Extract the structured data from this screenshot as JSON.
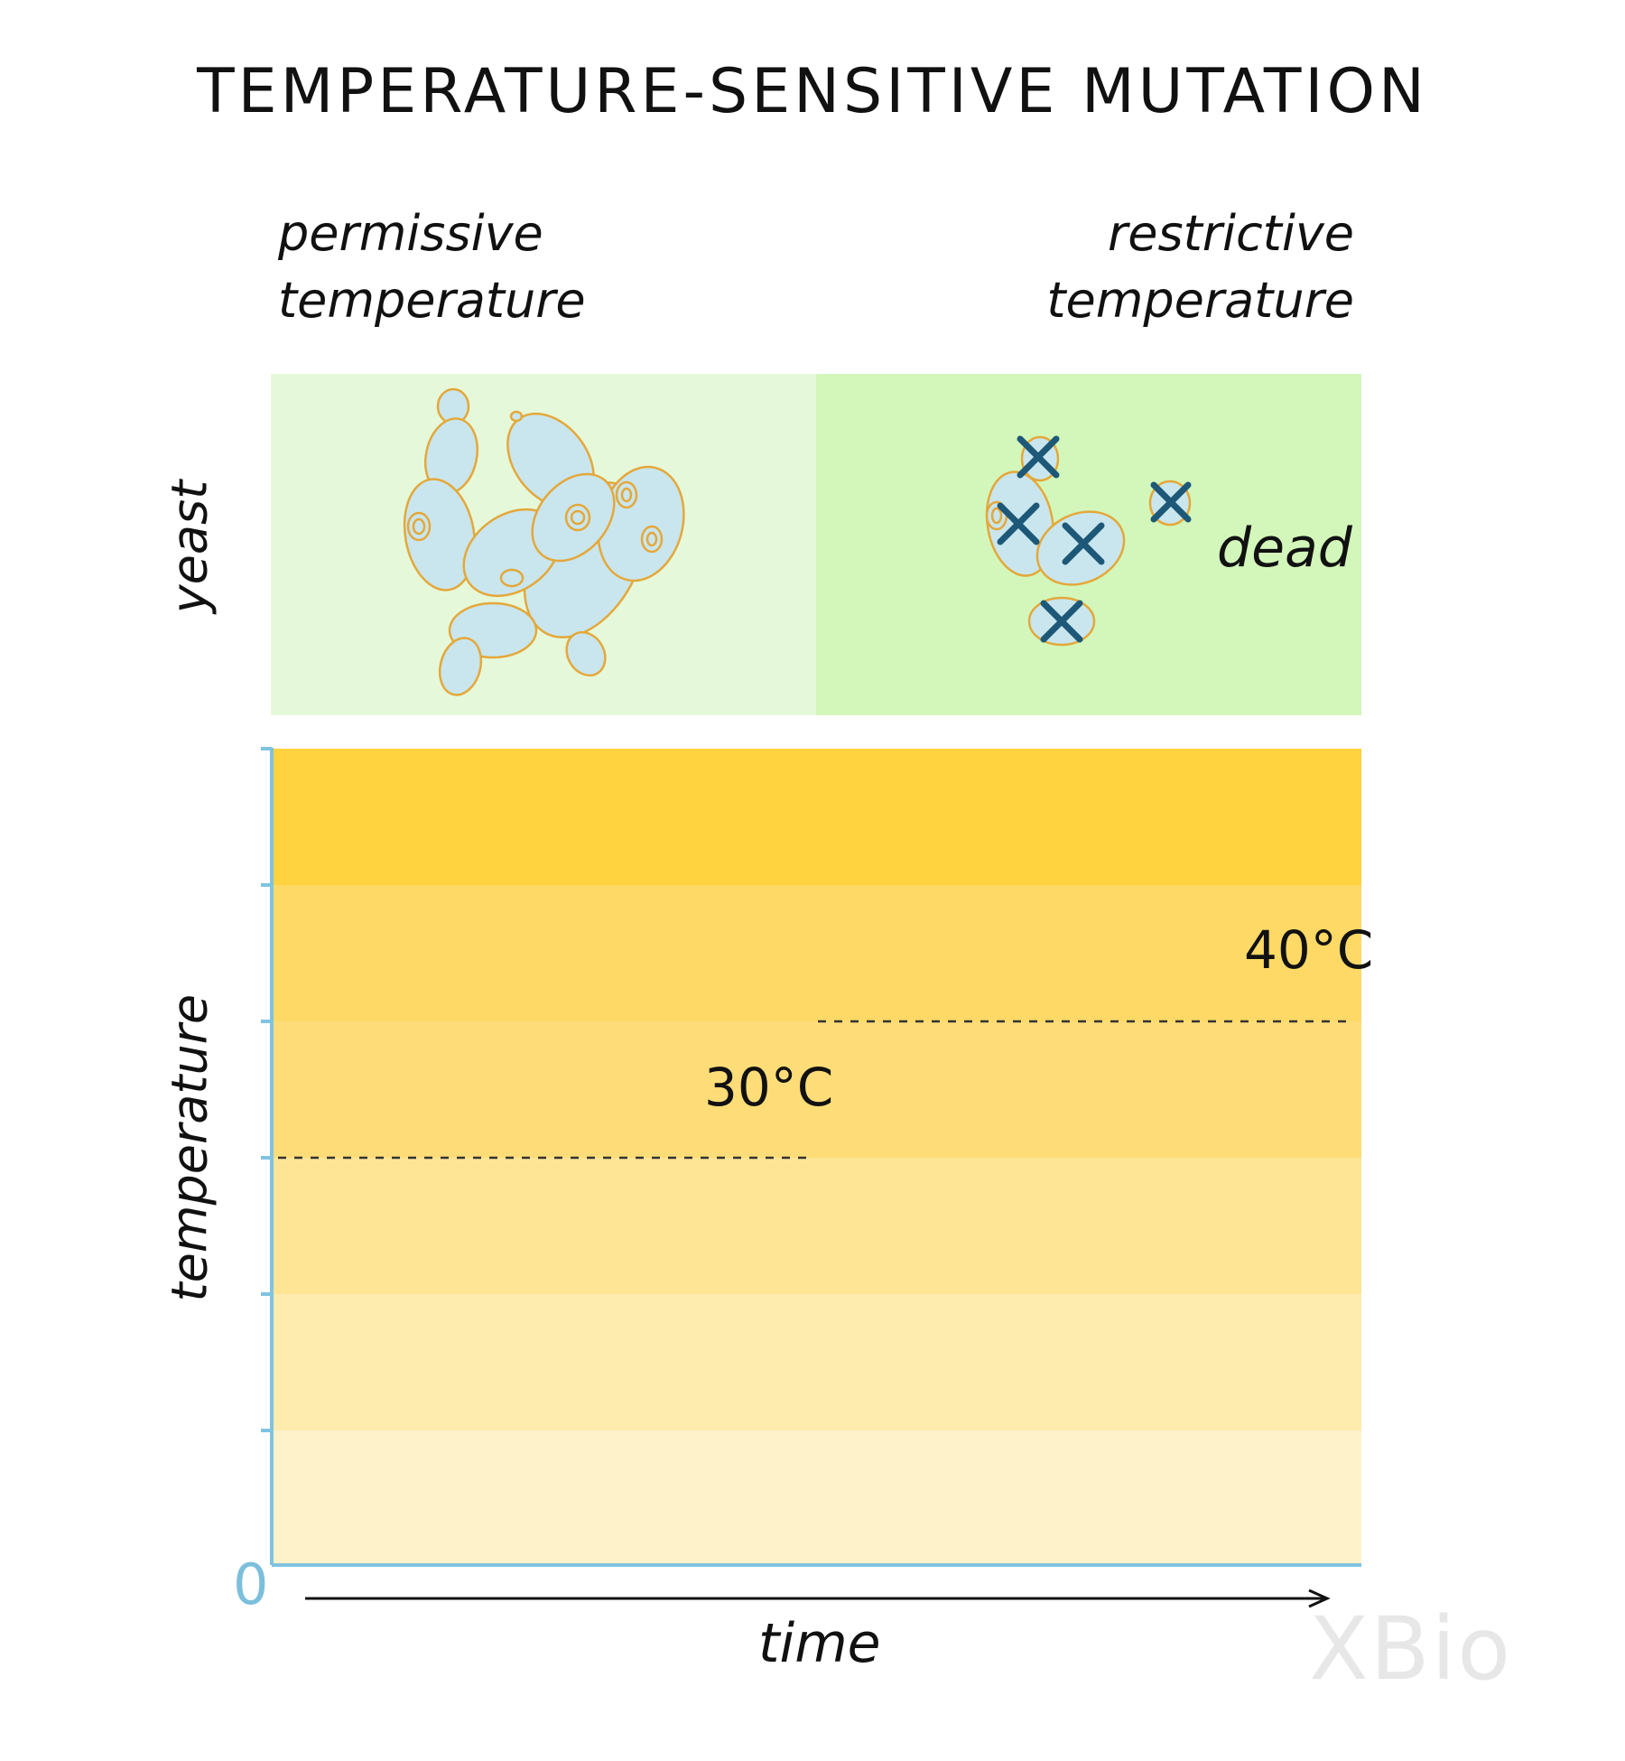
{
  "title": "TEMPERATURE-SENSITIVE MUTATION",
  "columns": {
    "left": {
      "line1": "permissive",
      "line2": "temperature"
    },
    "right": {
      "line1": "restrictive",
      "line2": "temperature"
    }
  },
  "row_labels": {
    "yeast": "yeast",
    "temperature": "temperature"
  },
  "yeast_status_label": "dead",
  "temperature_levels": {
    "permissive": "30°C",
    "restrictive": "40°C"
  },
  "axis": {
    "origin": "0",
    "x_label": "time"
  },
  "logo_text": "XBio",
  "colors": {
    "permissive_panel": "#e6f8da",
    "restrictive_panel": "#d3f7bb",
    "cell_fill": "#c9e6ee",
    "cell_outline": "#e4a83a",
    "dead_marker": "#1d5878",
    "axis": "#80c3e0",
    "bands": [
      "#ffd23f",
      "#fed966",
      "#fedd78",
      "#fee596",
      "#feebae",
      "#fef2cb"
    ]
  }
}
